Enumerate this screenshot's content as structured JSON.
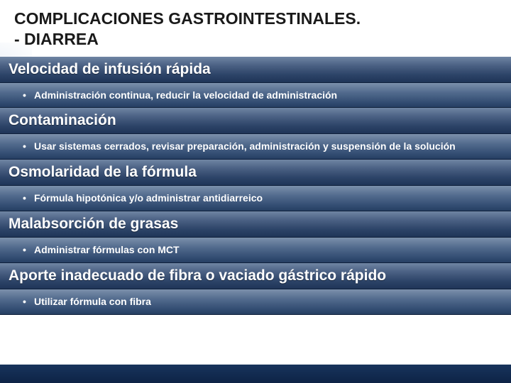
{
  "title_line1": "COMPLICACIONES GASTROINTESTINALES.",
  "title_line2": "- DIARREA",
  "title_fontsize": 23,
  "title_color": "#1a1a1a",
  "section_head_fontsize": 21,
  "section_body_fontsize": 14,
  "head_text_color": "#ffffff",
  "body_text_color": "#ffffff",
  "sections": [
    {
      "heading": "Velocidad de infusión rápida",
      "body": "Administración continua, reducir la velocidad de administración"
    },
    {
      "heading": "Contaminación",
      "body": "Usar sistemas cerrados, revisar preparación, administración y suspensión de la solución",
      "justify": true
    },
    {
      "heading": "Osmolaridad de la fórmula",
      "body": "Fórmula hipotónica y/o administrar antidiarreico"
    },
    {
      "heading": "Malabsorción de grasas",
      "body": "Administrar fórmulas con MCT"
    },
    {
      "heading": "Aporte inadecuado de fibra o vaciado gástrico rápido",
      "body": "Utilizar fórmula con fibra"
    }
  ]
}
